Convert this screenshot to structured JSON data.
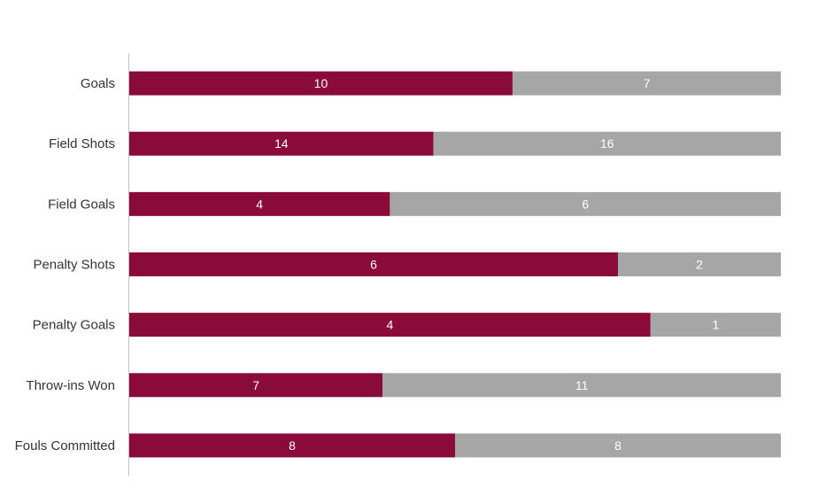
{
  "chart_data": {
    "type": "bar",
    "orientation": "horizontal",
    "stacking": "percent",
    "categories": [
      "Goals",
      "Field Shots",
      "Field Goals",
      "Penalty Shots",
      "Penalty Goals",
      "Throw-ins Won",
      "Fouls Committed"
    ],
    "series": [
      {
        "values": [
          10,
          14,
          4,
          6,
          4,
          7,
          8
        ],
        "color": "#8a0a39"
      },
      {
        "values": [
          7,
          16,
          6,
          2,
          1,
          11,
          8
        ],
        "color": "#a6a6a6"
      }
    ],
    "title": "",
    "xlabel": "",
    "ylabel": "",
    "grid": false,
    "legend": "none",
    "value_labels": true,
    "axis_color": "#bfbfbf",
    "label_color": "#333333",
    "value_label_color": "#ffffff"
  }
}
